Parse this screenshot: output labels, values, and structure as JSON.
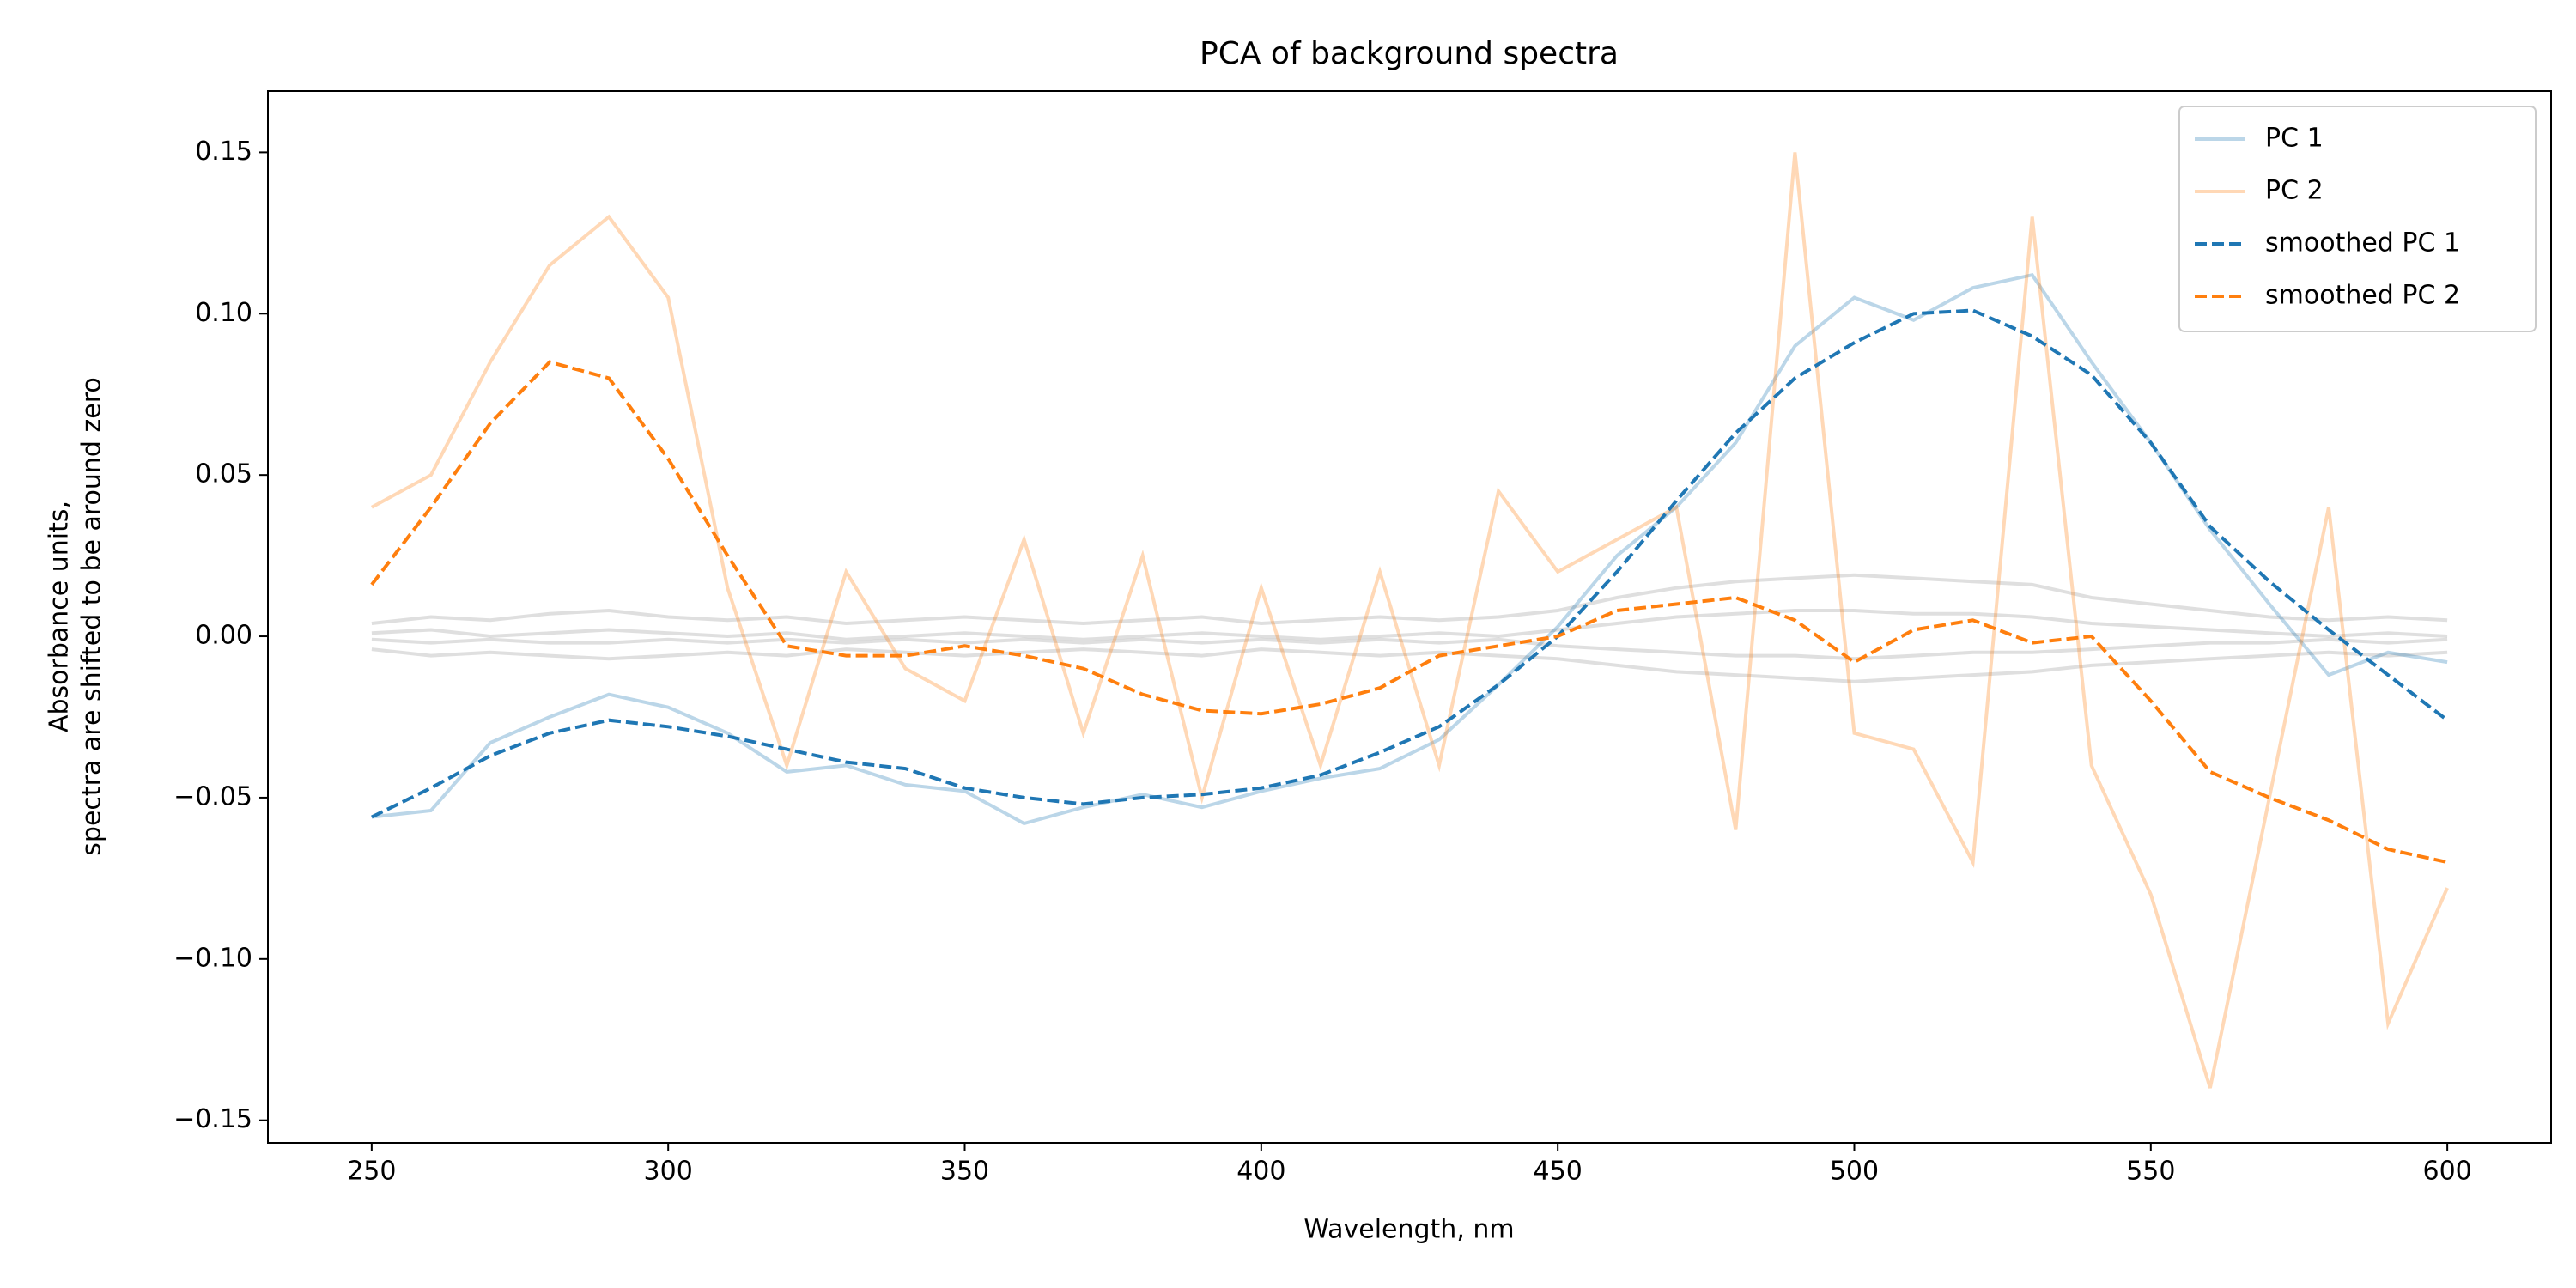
{
  "chart_data": {
    "type": "line",
    "title": "PCA of background spectra",
    "xlabel": "Wavelength, nm",
    "ylabel": [
      "Absorbance units,",
      "spectra are shifted to be around zero"
    ],
    "x": [
      250,
      260,
      270,
      280,
      290,
      300,
      310,
      320,
      330,
      340,
      350,
      360,
      370,
      380,
      390,
      400,
      410,
      420,
      430,
      440,
      450,
      460,
      470,
      480,
      490,
      500,
      510,
      520,
      530,
      540,
      550,
      560,
      570,
      580,
      590,
      600
    ],
    "xlim": [
      232.5,
      617.5
    ],
    "xticks": [
      250,
      300,
      350,
      400,
      450,
      500,
      550,
      600
    ],
    "ylim": [
      -0.157,
      0.169
    ],
    "yticks": [
      {
        "value": -0.15,
        "label": "−0.15"
      },
      {
        "value": -0.1,
        "label": "−0.10"
      },
      {
        "value": -0.05,
        "label": "−0.05"
      },
      {
        "value": 0,
        "label": "0.00"
      },
      0.05,
      {
        "value": 0.1,
        "label": "0.10"
      },
      0.15
    ],
    "legend": "upper right",
    "series": [
      {
        "color": "#808080",
        "opacity": 0.25,
        "dash": "solid",
        "values": [
          0.004,
          0.006,
          0.005,
          0.007,
          0.008,
          0.006,
          0.005,
          0.006,
          0.004,
          0.005,
          0.006,
          0.005,
          0.004,
          0.005,
          0.006,
          0.004,
          0.005,
          0.006,
          0.005,
          0.006,
          0.008,
          0.012,
          0.015,
          0.017,
          0.018,
          0.019,
          0.018,
          0.017,
          0.016,
          0.012,
          0.01,
          0.008,
          0.006,
          0.005,
          0.006,
          0.005
        ]
      },
      {
        "color": "#808080",
        "opacity": 0.25,
        "dash": "solid",
        "values": [
          -0.004,
          -0.006,
          -0.005,
          -0.006,
          -0.007,
          -0.006,
          -0.005,
          -0.006,
          -0.004,
          -0.005,
          -0.006,
          -0.005,
          -0.004,
          -0.005,
          -0.006,
          -0.004,
          -0.005,
          -0.006,
          -0.005,
          -0.006,
          -0.007,
          -0.009,
          -0.011,
          -0.012,
          -0.013,
          -0.014,
          -0.013,
          -0.012,
          -0.011,
          -0.009,
          -0.008,
          -0.007,
          -0.006,
          -0.005,
          -0.006,
          -0.005
        ]
      },
      {
        "color": "#808080",
        "opacity": 0.25,
        "dash": "solid",
        "values": [
          0.001,
          0.002,
          0.0,
          0.001,
          0.002,
          0.001,
          0.0,
          0.001,
          -0.001,
          0.0,
          0.001,
          0.0,
          -0.001,
          0.0,
          0.001,
          0.0,
          -0.001,
          0.0,
          0.001,
          0.0,
          0.002,
          0.004,
          0.006,
          0.007,
          0.008,
          0.008,
          0.007,
          0.007,
          0.006,
          0.004,
          0.003,
          0.002,
          0.001,
          0.0,
          0.001,
          0.0
        ]
      },
      {
        "color": "#808080",
        "opacity": 0.25,
        "dash": "solid",
        "values": [
          -0.001,
          -0.002,
          -0.001,
          -0.002,
          -0.002,
          -0.001,
          -0.002,
          -0.001,
          -0.002,
          -0.001,
          -0.002,
          -0.001,
          -0.002,
          -0.001,
          -0.002,
          -0.001,
          -0.002,
          -0.001,
          -0.002,
          -0.001,
          -0.003,
          -0.004,
          -0.005,
          -0.006,
          -0.006,
          -0.007,
          -0.006,
          -0.005,
          -0.005,
          -0.004,
          -0.003,
          -0.002,
          -0.002,
          -0.001,
          -0.002,
          -0.001
        ]
      },
      {
        "name": "PC 1",
        "color": "#1f77b4",
        "opacity": 0.3,
        "dash": "solid",
        "values": [
          -0.056,
          -0.054,
          -0.033,
          -0.025,
          -0.018,
          -0.022,
          -0.03,
          -0.042,
          -0.04,
          -0.046,
          -0.048,
          -0.058,
          -0.053,
          -0.049,
          -0.053,
          -0.048,
          -0.044,
          -0.041,
          -0.032,
          -0.015,
          0.003,
          0.025,
          0.04,
          0.06,
          0.09,
          0.105,
          0.098,
          0.108,
          0.112,
          0.085,
          0.06,
          0.033,
          0.01,
          -0.012,
          -0.005,
          -0.008
        ]
      },
      {
        "name": "PC 2",
        "color": "#ff7f0e",
        "opacity": 0.3,
        "dash": "solid",
        "values": [
          0.04,
          0.05,
          0.085,
          0.115,
          0.13,
          0.105,
          0.015,
          -0.04,
          0.02,
          -0.01,
          -0.02,
          0.03,
          -0.03,
          0.025,
          -0.05,
          0.015,
          -0.04,
          0.02,
          -0.04,
          0.045,
          0.02,
          0.03,
          0.04,
          -0.06,
          0.15,
          -0.03,
          -0.035,
          -0.07,
          0.13,
          -0.04,
          -0.08,
          -0.14,
          -0.05,
          0.04,
          -0.12,
          -0.078
        ]
      },
      {
        "name": "smoothed PC 1",
        "color": "#1f77b4",
        "opacity": 1,
        "dash": "dashed",
        "values": [
          -0.056,
          -0.047,
          -0.037,
          -0.03,
          -0.026,
          -0.028,
          -0.031,
          -0.035,
          -0.039,
          -0.041,
          -0.047,
          -0.05,
          -0.052,
          -0.05,
          -0.049,
          -0.047,
          -0.043,
          -0.036,
          -0.028,
          -0.015,
          0.0,
          0.02,
          0.042,
          0.063,
          0.08,
          0.091,
          0.1,
          0.101,
          0.093,
          0.081,
          0.06,
          0.034,
          0.017,
          0.002,
          -0.012,
          -0.026
        ]
      },
      {
        "name": "smoothed PC 2",
        "color": "#ff7f0e",
        "opacity": 1,
        "dash": "dashed",
        "values": [
          0.016,
          0.04,
          0.066,
          0.085,
          0.08,
          0.055,
          0.025,
          -0.003,
          -0.006,
          -0.006,
          -0.003,
          -0.006,
          -0.01,
          -0.018,
          -0.023,
          -0.024,
          -0.021,
          -0.016,
          -0.006,
          -0.003,
          0.0,
          0.008,
          0.01,
          0.012,
          0.005,
          -0.008,
          0.002,
          0.005,
          -0.002,
          0.0,
          -0.02,
          -0.042,
          -0.05,
          -0.057,
          -0.066,
          -0.07
        ]
      }
    ]
  }
}
